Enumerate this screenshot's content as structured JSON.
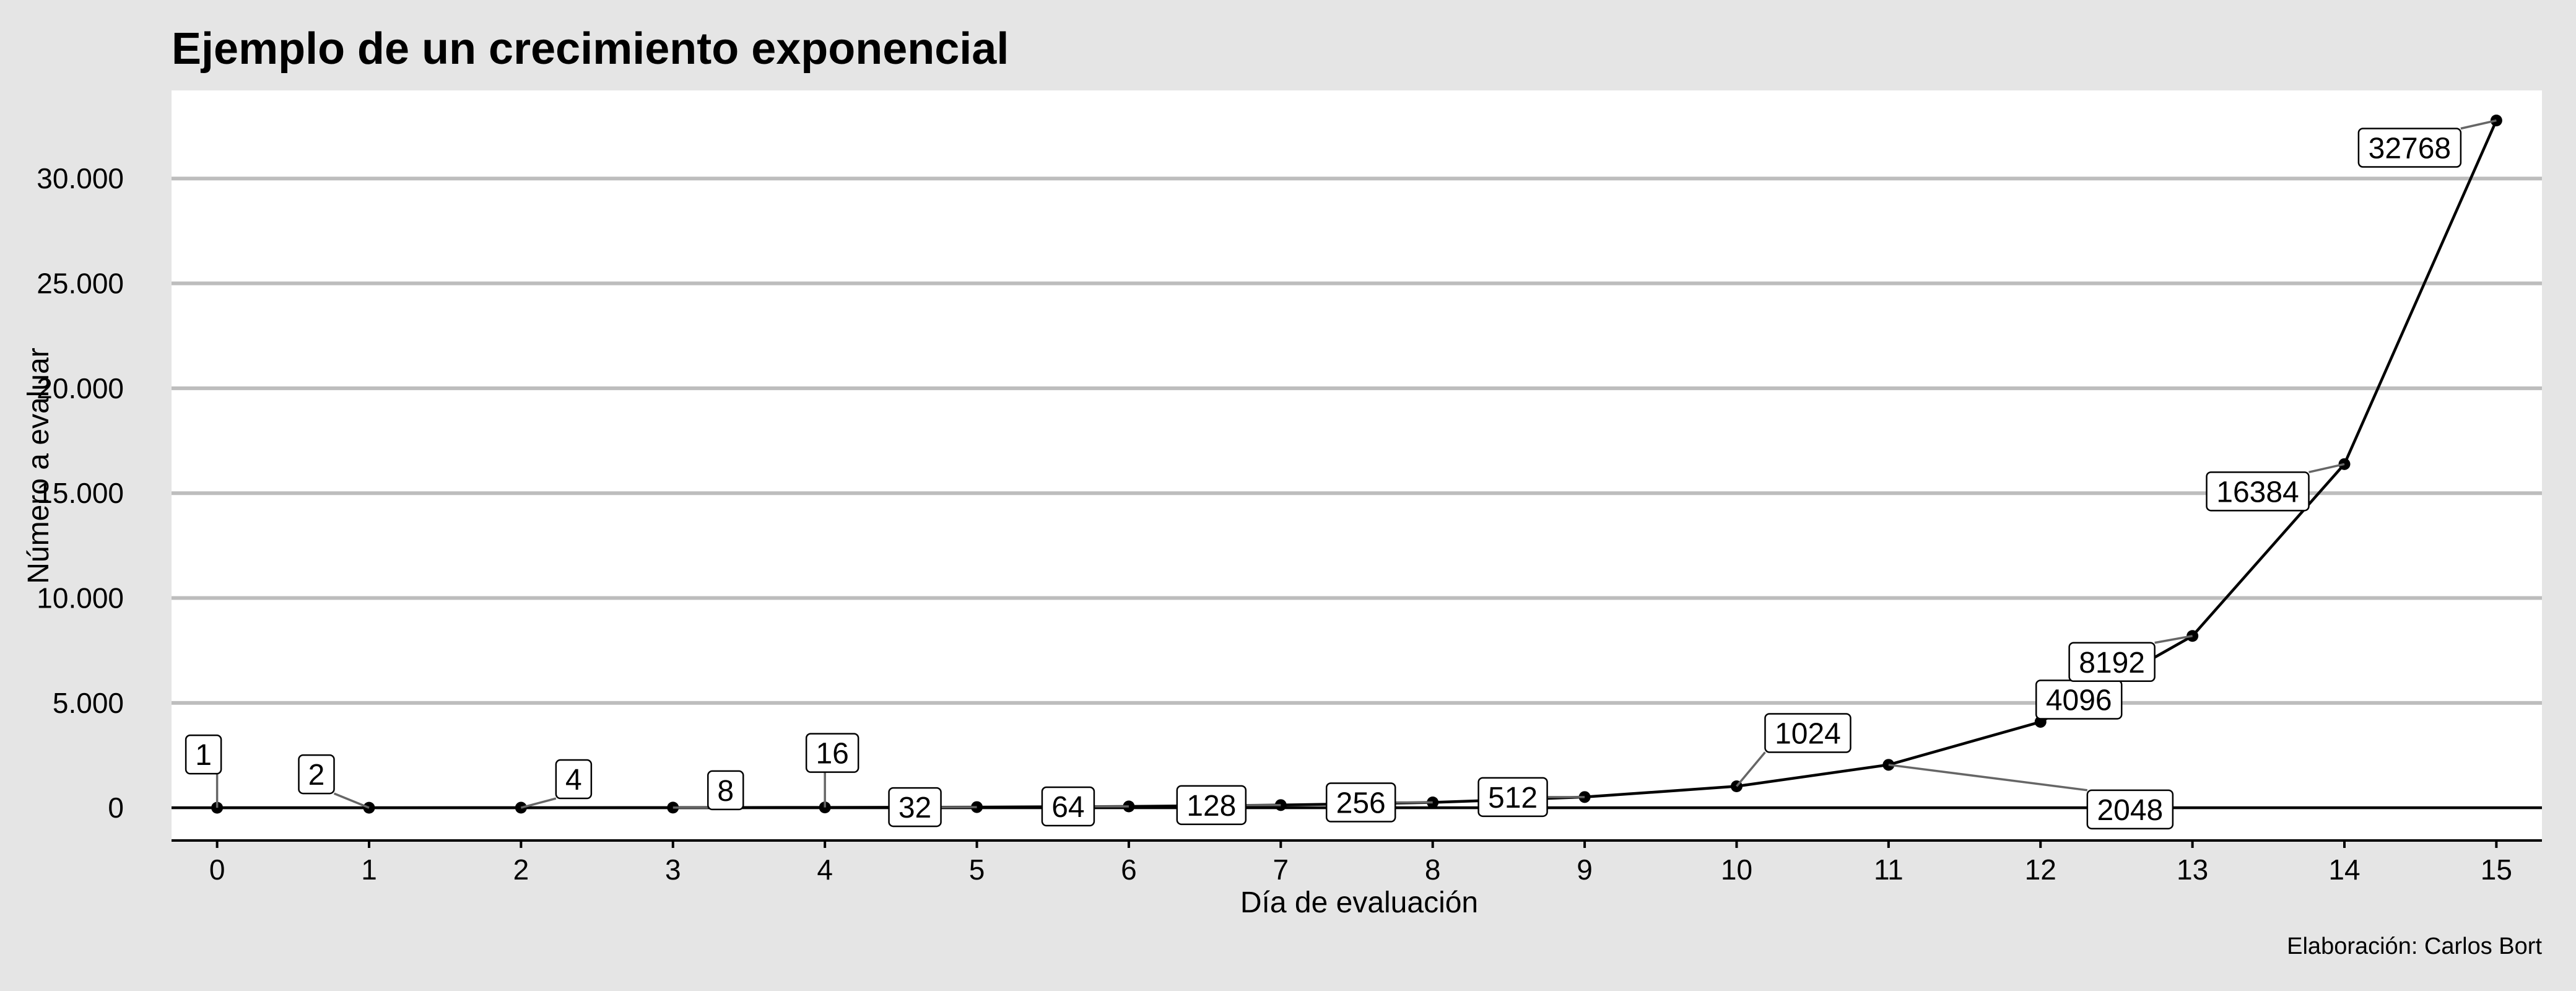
{
  "chart_data": {
    "type": "line",
    "title": "Ejemplo de un crecimiento exponencial",
    "xlabel": "Día de evaluación",
    "ylabel": "Número a evaluar",
    "caption": "Elaboración: Carlos Bort",
    "x": [
      0,
      1,
      2,
      3,
      4,
      5,
      6,
      7,
      8,
      9,
      10,
      11,
      12,
      13,
      14,
      15
    ],
    "values": [
      1,
      2,
      4,
      8,
      16,
      32,
      64,
      128,
      256,
      512,
      1024,
      2048,
      4096,
      8192,
      16384,
      32768
    ],
    "data_labels": [
      "1",
      "2",
      "4",
      "8",
      "16",
      "32",
      "64",
      "128",
      "256",
      "512",
      "1024",
      "2048",
      "4096",
      "8192",
      "16384",
      "32768"
    ],
    "x_ticks": [
      "0",
      "1",
      "2",
      "3",
      "4",
      "5",
      "6",
      "7",
      "8",
      "9",
      "10",
      "11",
      "12",
      "13",
      "14",
      "15"
    ],
    "y_ticks": [
      {
        "value": 0,
        "label": "0"
      },
      {
        "value": 5000,
        "label": "5.000"
      },
      {
        "value": 10000,
        "label": "10.000"
      },
      {
        "value": 15000,
        "label": "15.000"
      },
      {
        "value": 20000,
        "label": "20.000"
      },
      {
        "value": 25000,
        "label": "25.000"
      },
      {
        "value": 30000,
        "label": "30.000"
      }
    ],
    "xlim": [
      -0.3,
      15.3
    ],
    "ylim": [
      -1560,
      34200
    ],
    "grid": "horizontal",
    "colors": {
      "background": "#e5e5e5",
      "panel": "#ffffff",
      "grid": "#bdbdbd",
      "line": "#000000",
      "leader": "#666666"
    }
  }
}
